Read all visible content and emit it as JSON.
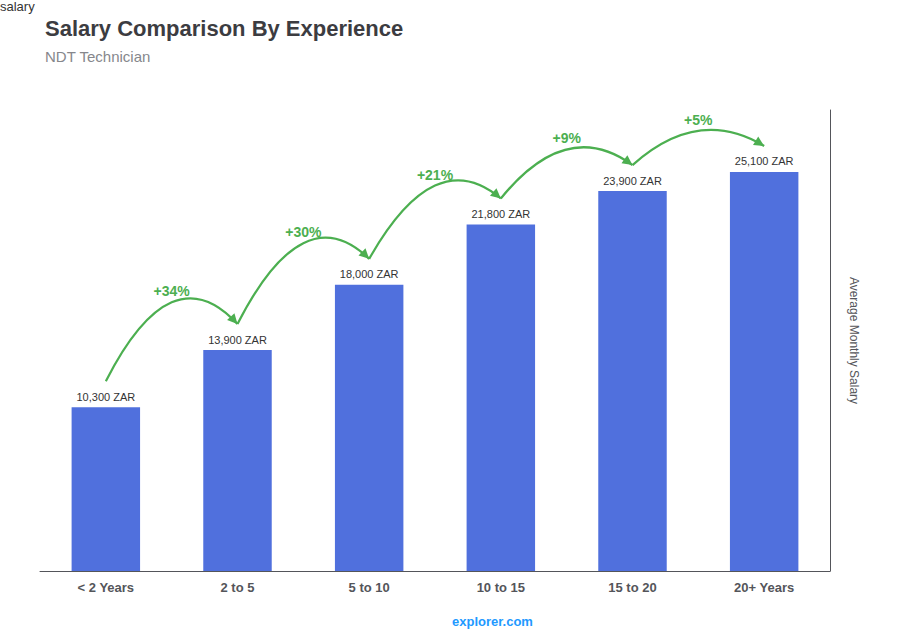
{
  "chart_data": {
    "type": "bar",
    "title": "Salary Comparison By Experience",
    "subtitle": "NDT Technician",
    "categories": [
      "< 2 Years",
      "2 to 5",
      "5 to 10",
      "10 to 15",
      "15 to 20",
      "20+ Years"
    ],
    "values": [
      10300,
      13900,
      18000,
      21800,
      23900,
      25100
    ],
    "value_labels": [
      "10,300 ZAR",
      "13,900 ZAR",
      "18,000 ZAR",
      "21,800 ZAR",
      "23,900 ZAR",
      "25,100 ZAR"
    ],
    "data_labels": true,
    "annotations": [
      "+34%",
      "+30%",
      "+21%",
      "+9%",
      "+5%"
    ],
    "ylabel": "Average Monthly Salary",
    "footer": [
      "salary",
      "explorer.com"
    ],
    "ylim": [
      0,
      29000
    ],
    "grid": false,
    "tick_labels": "x"
  }
}
